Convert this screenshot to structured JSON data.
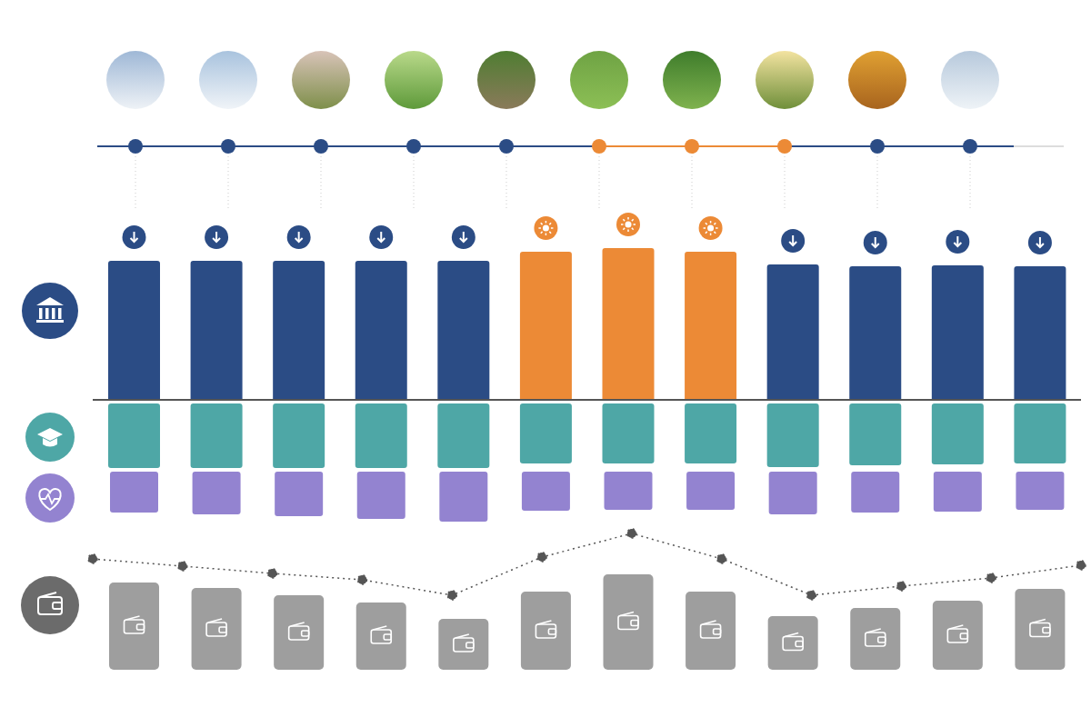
{
  "chart_data": [
    {
      "type": "bar",
      "categories": [
        null,
        null,
        null,
        null,
        null,
        null,
        null,
        null,
        null,
        null,
        null,
        null
      ],
      "values": [
        153,
        153,
        153,
        153,
        153,
        163,
        167,
        163,
        149,
        147,
        148,
        147
      ],
      "colors": [
        "#2b4c85",
        "#2b4c85",
        "#2b4c85",
        "#2b4c85",
        "#2b4c85",
        "#ec8a36",
        "#ec8a36",
        "#ec8a36",
        "#2b4c85",
        "#2b4c85",
        "#2b4c85",
        "#2b4c85"
      ],
      "ylim": [
        0,
        240
      ],
      "tick_labels": false
    },
    {
      "type": "bar",
      "categories": [
        null,
        null,
        null,
        null,
        null,
        null,
        null,
        null,
        null,
        null,
        null,
        null
      ],
      "values": [
        71,
        71,
        71,
        71,
        71,
        66,
        66,
        66,
        70,
        68,
        67,
        66
      ],
      "color": "#4ea7a6",
      "ylim": [
        0,
        80
      ],
      "tick_labels": false
    },
    {
      "type": "bar",
      "categories": [
        null,
        null,
        null,
        null,
        null,
        null,
        null,
        null,
        null,
        null,
        null,
        null
      ],
      "values": [
        45,
        47,
        49,
        52,
        55,
        43,
        42,
        42,
        47,
        45,
        44,
        42
      ],
      "color": "#9383d0",
      "ylim": [
        0,
        60
      ],
      "tick_labels": false
    },
    {
      "type": "bar",
      "categories": [
        null,
        null,
        null,
        null,
        null,
        null,
        null,
        null,
        null,
        null,
        null,
        null
      ],
      "values": [
        96,
        90,
        82,
        74,
        56,
        86,
        105,
        86,
        59,
        68,
        76,
        89
      ],
      "color": "#9e9e9e",
      "ylim": [
        0,
        160
      ],
      "tick_labels": false
    },
    {
      "type": "line",
      "categories": [
        null,
        null,
        null,
        null,
        null,
        null,
        null,
        null,
        null,
        null,
        null,
        null
      ],
      "values": [
        122,
        114,
        106,
        99,
        82,
        124,
        150,
        122,
        82,
        92,
        101,
        115
      ],
      "color": "#555555",
      "line_style": "dotted",
      "marker": "circle",
      "ylim": [
        0,
        160
      ],
      "tick_labels": false
    }
  ]
}
